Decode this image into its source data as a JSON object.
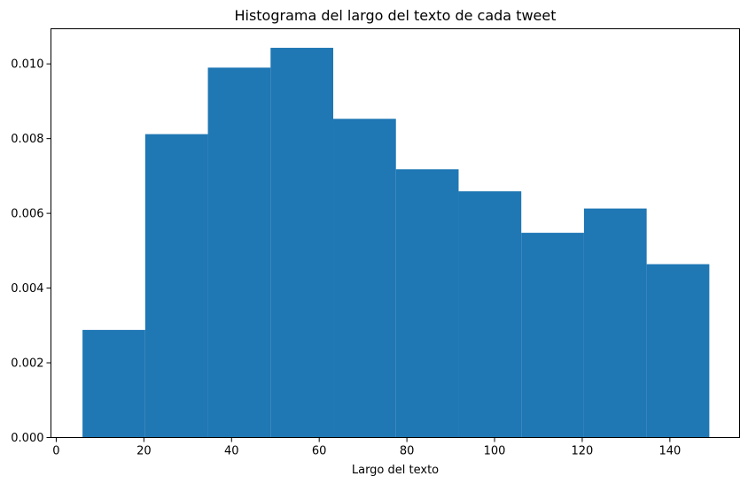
{
  "chart_data": {
    "type": "bar",
    "subtype": "histogram",
    "title": "Histograma del largo del texto de cada tweet",
    "xlabel": "Largo del texto",
    "ylabel": "",
    "xlim": [
      -1.2,
      155.9
    ],
    "ylim": [
      0,
      0.01094
    ],
    "x_ticks": [
      0,
      20,
      40,
      60,
      80,
      100,
      120,
      140
    ],
    "x_tick_labels": [
      "0",
      "20",
      "40",
      "60",
      "80",
      "100",
      "120",
      "140"
    ],
    "y_ticks": [
      0,
      0.002,
      0.004,
      0.006,
      0.008,
      0.01
    ],
    "y_tick_labels": [
      "0.000",
      "0.002",
      "0.004",
      "0.006",
      "0.008",
      "0.010"
    ],
    "bin_edges": [
      6,
      20.3,
      34.6,
      48.9,
      63.2,
      77.5,
      91.8,
      106.1,
      120.4,
      134.7,
      149
    ],
    "values": [
      0.00288,
      0.00812,
      0.0099,
      0.01043,
      0.00853,
      0.00718,
      0.00659,
      0.00548,
      0.00613,
      0.00464
    ],
    "bar_color": "#1f77b4",
    "grid": false,
    "legend": "none"
  }
}
